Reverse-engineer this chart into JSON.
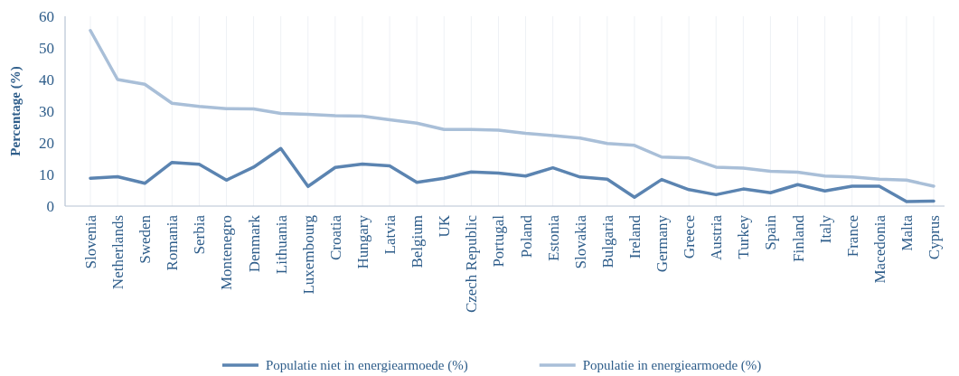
{
  "chart_data": {
    "type": "line",
    "ylabel": "Percentage (%)",
    "categories": [
      "Slovenia",
      "Netherlands",
      "Sweden",
      "Romania",
      "Serbia",
      "Montenegro",
      "Denmark",
      "Lithuania",
      "Luxembourg",
      "Croatia",
      "Hungary",
      "Latvia",
      "Belgium",
      "UK",
      "Czech Republic",
      "Portugal",
      "Poland",
      "Estonia",
      "Slovakia",
      "Bulgaria",
      "Ireland",
      "Germany",
      "Greece",
      "Austria",
      "Turkey",
      "Spain",
      "Finland",
      "Italy",
      "France",
      "Macedonia",
      "Malta",
      "Cyprus"
    ],
    "series": [
      {
        "name": "Populatie niet in energiearmoede (%)",
        "color": "#5b84b1",
        "values": [
          8.8,
          9.3,
          7.2,
          13.8,
          13.2,
          8.2,
          12.3,
          18.2,
          6.2,
          12.2,
          13.3,
          12.7,
          7.5,
          8.8,
          10.8,
          10.4,
          9.5,
          12.1,
          9.2,
          8.5,
          2.8,
          8.4,
          5.2,
          3.6,
          5.4,
          4.2,
          6.8,
          4.8,
          6.3,
          6.3,
          1.4,
          1.6
        ]
      },
      {
        "name": "Populatie in energiearmoede (%)",
        "color": "#a9bfd8",
        "values": [
          55.5,
          40,
          38.5,
          32.5,
          31.5,
          30.8,
          30.7,
          29.3,
          29,
          28.6,
          28.4,
          27.3,
          26.2,
          24.2,
          24.2,
          24,
          23,
          22.3,
          21.5,
          19.8,
          19.2,
          15.5,
          15.2,
          12.3,
          12,
          11,
          10.7,
          9.5,
          9.2,
          8.5,
          8.2,
          6.3
        ]
      }
    ],
    "ylim": [
      0,
      60
    ],
    "yticks": [
      0,
      10,
      20,
      30,
      40,
      50,
      60
    ],
    "grid": "x",
    "legend": "bottom",
    "marker": "none",
    "line_style": "solid"
  }
}
